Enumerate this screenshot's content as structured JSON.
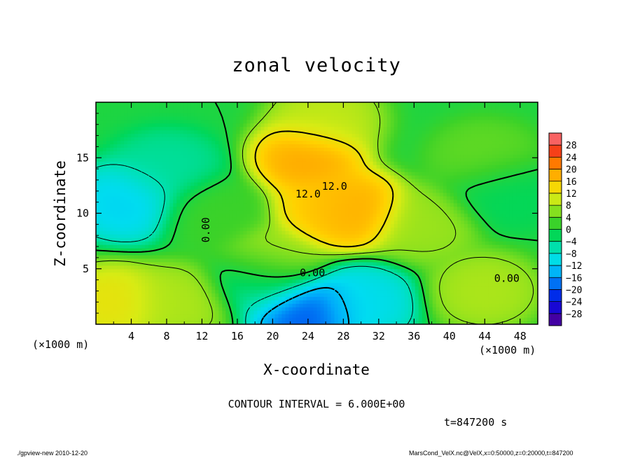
{
  "chart_data": {
    "type": "heatmap",
    "title": "zonal velocity",
    "xlabel": "X-coordinate",
    "ylabel": "Z-coordinate",
    "x_unit_label": "(×1000 m)",
    "x_ticks": [
      "4",
      "8",
      "12",
      "16",
      "20",
      "24",
      "28",
      "32",
      "36",
      "40",
      "44",
      "48"
    ],
    "y_ticks": [
      "5",
      "10",
      "15"
    ],
    "xlim": [
      0,
      50
    ],
    "ylim": [
      0,
      20
    ],
    "contour_interval_text": "CONTOUR INTERVAL = 6.000E+00",
    "time_text": "t=847200 s",
    "colorbar": {
      "labels": [
        "28",
        "24",
        "20",
        "16",
        "12",
        "8",
        "4",
        "0",
        "−4",
        "−8",
        "−12",
        "−16",
        "−20",
        "−24",
        "−28"
      ],
      "range": [
        -30,
        30
      ]
    },
    "contour_labels": [
      "12.0",
      "12.0",
      "0.00",
      "0.00",
      "0.00"
    ],
    "features": [
      {
        "x": 24,
        "z": 15,
        "value": 18
      },
      {
        "x": 29,
        "z": 10.3,
        "value": 18
      },
      {
        "x": 26.5,
        "z": 10.5,
        "value": 15
      },
      {
        "x": 20,
        "z": 5.5,
        "value": 9
      },
      {
        "x": 37,
        "z": 9,
        "value": 7
      },
      {
        "x": 2,
        "z": 2,
        "value": 12
      },
      {
        "x": 9,
        "z": 2,
        "value": 8
      },
      {
        "x": 44,
        "z": 3,
        "value": 8
      },
      {
        "x": 3.5,
        "z": 11,
        "value": -11
      },
      {
        "x": 8,
        "z": 14,
        "value": -5
      },
      {
        "x": 24,
        "z": 1.2,
        "value": -19
      },
      {
        "x": 30,
        "z": 2,
        "value": -10
      },
      {
        "x": 19,
        "z": 4,
        "value": -6
      },
      {
        "x": 46,
        "z": 12,
        "value": -2
      },
      {
        "x": 13,
        "z": 10,
        "value": 2
      },
      {
        "x": 44,
        "z": 15,
        "value": 4
      },
      {
        "x": 26,
        "z": 18.5,
        "value": 9
      }
    ]
  },
  "footer": {
    "left": "./gpview-new   2010-12-20",
    "right": "MarsCond_VelX.nc@VelX,x=0:50000,z=0:20000,t=847200"
  }
}
